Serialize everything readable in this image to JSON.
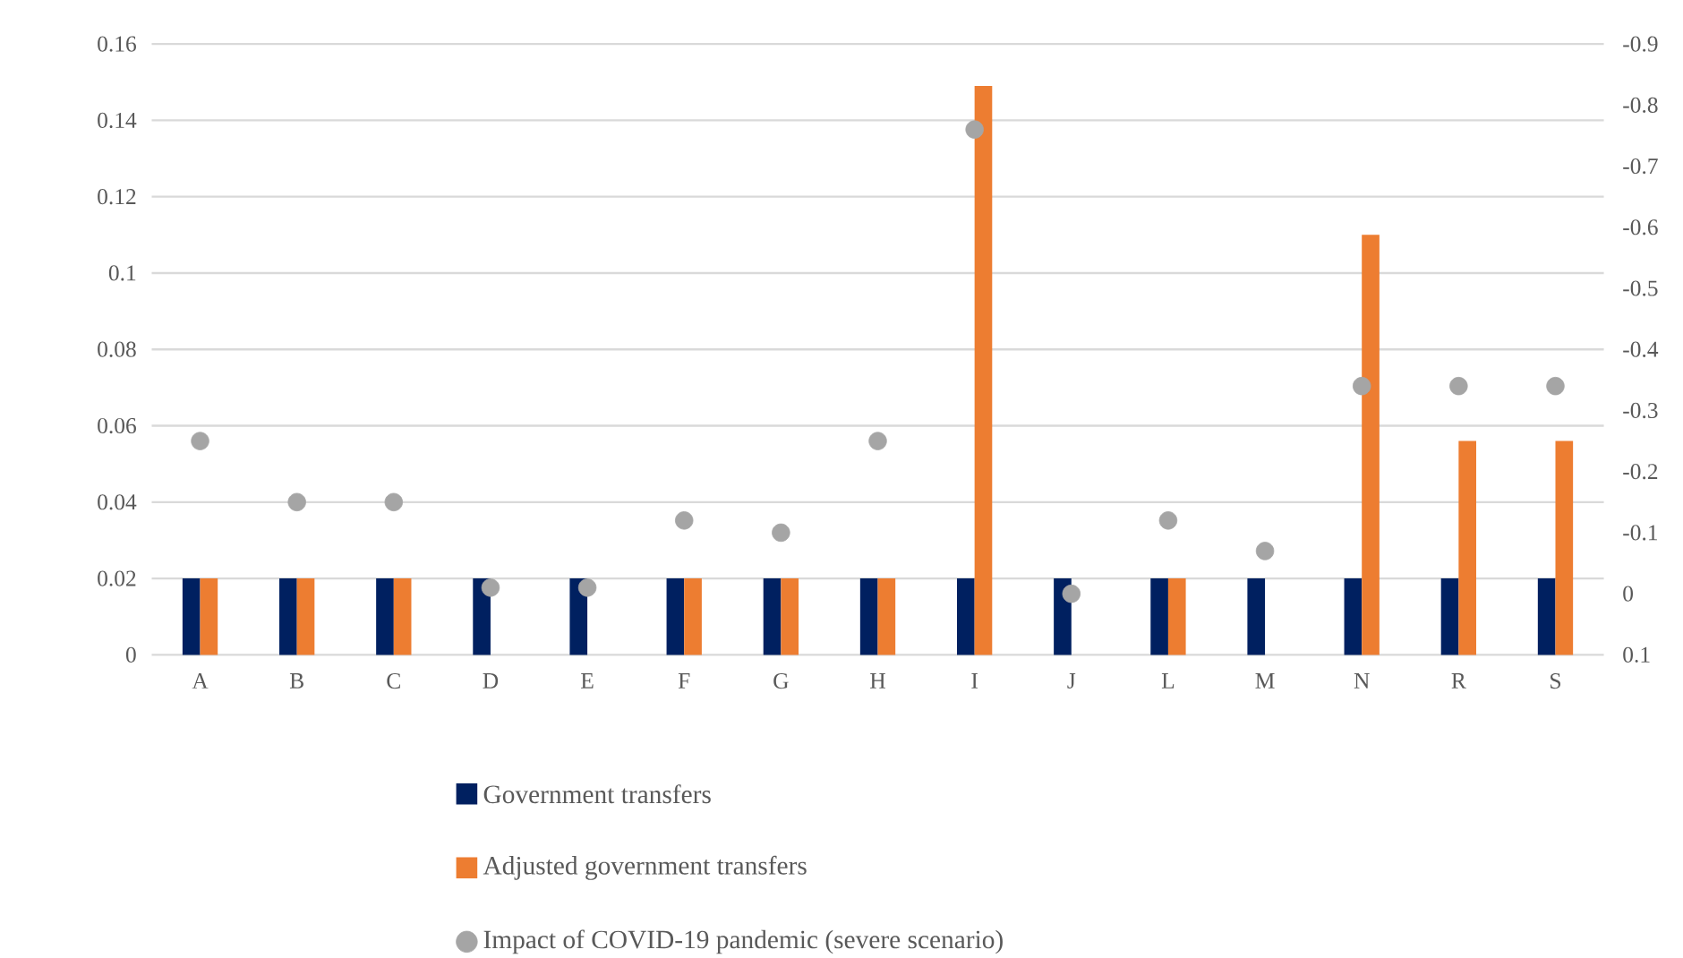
{
  "chart_data": {
    "type": "bar",
    "categories": [
      "A",
      "B",
      "C",
      "D",
      "E",
      "F",
      "G",
      "H",
      "I",
      "J",
      "L",
      "M",
      "N",
      "R",
      "S"
    ],
    "series": [
      {
        "name": "Government transfers",
        "color": "#002060",
        "values": [
          0.02,
          0.02,
          0.02,
          0.02,
          0.02,
          0.02,
          0.02,
          0.02,
          0.02,
          0.02,
          0.02,
          0.02,
          0.02,
          0.02,
          0.02
        ]
      },
      {
        "name": "Adjusted government transfers",
        "color": "#ED7D31",
        "values": [
          0.02,
          0.02,
          0.02,
          null,
          null,
          0.02,
          0.02,
          0.02,
          0.149,
          null,
          0.02,
          null,
          0.11,
          0.056,
          0.056
        ]
      },
      {
        "name": "Impact of COVID-19 pandemic (severe scenario)",
        "type": "scatter",
        "axis": "y2",
        "color": "#A5A5A5",
        "marker": "circle",
        "values": [
          -0.25,
          -0.15,
          -0.15,
          -0.01,
          -0.01,
          -0.12,
          -0.1,
          -0.25,
          -0.76,
          0.0,
          -0.12,
          -0.07,
          -0.34,
          -0.34,
          -0.34
        ]
      }
    ],
    "ylim": [
      0,
      0.16
    ],
    "yticks": [
      0,
      0.02,
      0.04,
      0.06,
      0.08,
      0.1,
      0.12,
      0.14,
      0.16
    ],
    "y2lim": [
      0.1,
      -0.9
    ],
    "y2ticks": [
      0.1,
      0,
      -0.1,
      -0.2,
      -0.3,
      -0.4,
      -0.5,
      -0.6,
      -0.7,
      -0.8,
      -0.9
    ],
    "grid": "y",
    "legend": "bottom"
  }
}
